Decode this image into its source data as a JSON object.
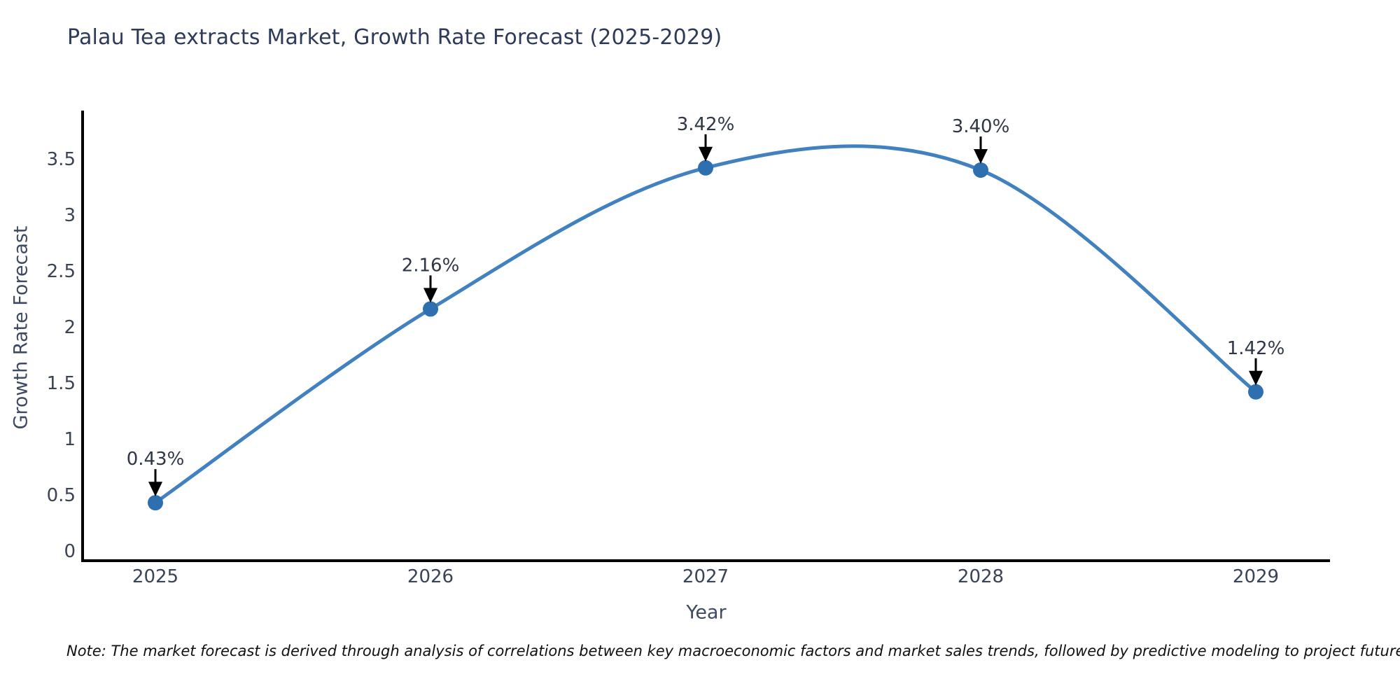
{
  "title": "Palau Tea extracts Market, Growth Rate Forecast (2025-2029)",
  "note": "Note: The market forecast is derived through analysis of correlations between key macroeconomic factors and market sales trends, followed by predictive modeling to project future sales",
  "colors": {
    "background": "#ffffff",
    "line": "#4181bf",
    "marker": "#2e6fb0",
    "axis_line": "#000000",
    "title_text": "#2e3a59",
    "axis_title_text": "#3e4a63",
    "tick_text": "#3a4454",
    "annotation_text": "#2f3744",
    "arrow": "#000000"
  },
  "chart_data": {
    "type": "line",
    "title": "Palau Tea extracts Market, Growth Rate Forecast (2025-2029)",
    "xlabel": "Year",
    "ylabel": "Growth Rate Forecast",
    "x": [
      "2025",
      "2026",
      "2027",
      "2028",
      "2029"
    ],
    "series": [
      {
        "name": "Growth Rate Forecast",
        "values": [
          0.43,
          2.16,
          3.42,
          3.4,
          1.42
        ],
        "point_labels": [
          "0.43%",
          "2.16%",
          "3.42%",
          "3.40%",
          "1.42%"
        ]
      }
    ],
    "yticks": [
      0,
      0.5,
      1,
      1.5,
      2,
      2.5,
      3,
      3.5
    ],
    "ylim": [
      -0.1,
      3.92
    ],
    "line_shape": "spline",
    "grid": false,
    "legend_position": "none",
    "annotations": "value labels with downward arrows above each point"
  }
}
